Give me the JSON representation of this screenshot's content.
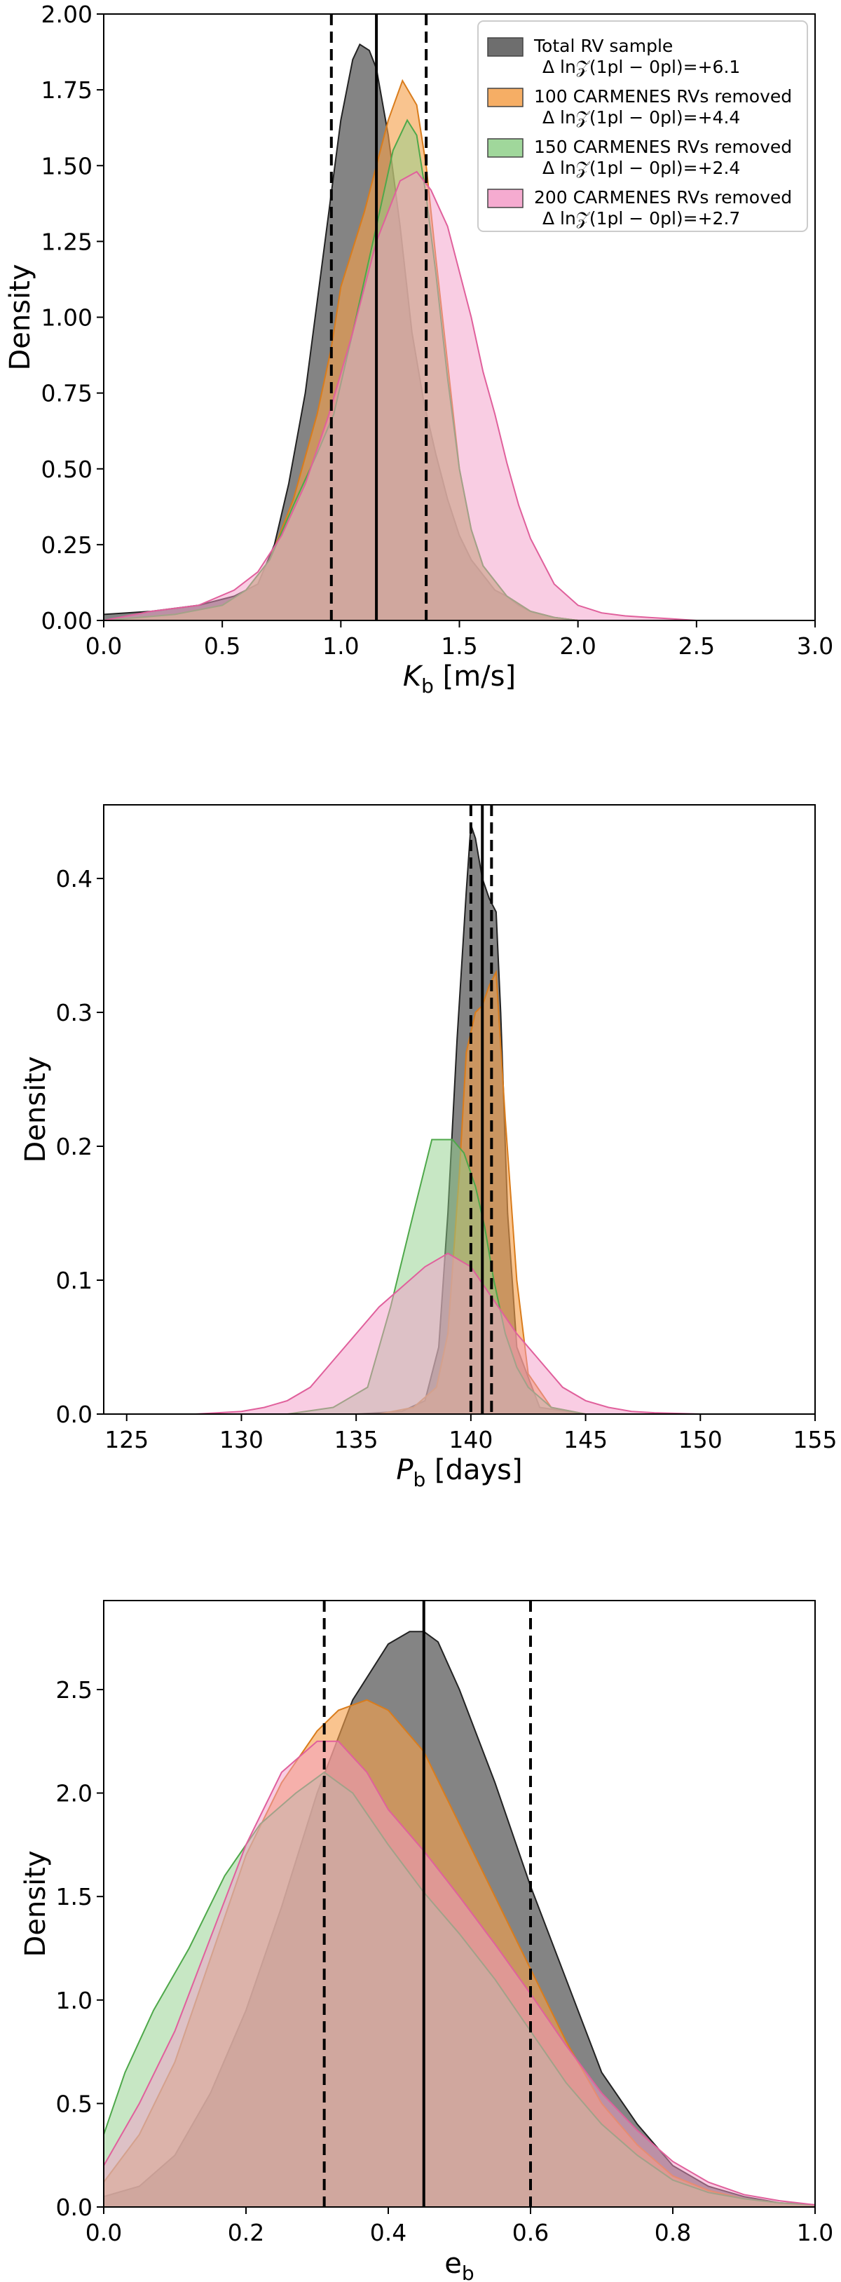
{
  "legend": {
    "entries": [
      {
        "label": "Total RV sample",
        "stat": "Δ ln𝒵(1pl − 0pl)=+6.1",
        "color": "#555555"
      },
      {
        "label": "100 CARMENES RVs removed",
        "stat": "Δ ln𝒵(1pl − 0pl)=+4.4",
        "color": "#f5a04a"
      },
      {
        "label": "150 CARMENES RVs removed",
        "stat": "Δ ln𝒵(1pl − 0pl)=+2.4",
        "color": "#8fd08a"
      },
      {
        "label": "200 CARMENES RVs removed",
        "stat": "Δ ln𝒵(1pl − 0pl)=+2.7",
        "color": "#f39cc8"
      }
    ],
    "placement": "top-right"
  },
  "chart_data": [
    {
      "type": "area",
      "xlabel": "K_b [m/s]",
      "ylabel": "Density",
      "xlim": [
        0.0,
        3.0
      ],
      "ylim": [
        0.0,
        2.0
      ],
      "xticks": [
        "0.0",
        "0.5",
        "1.0",
        "1.5",
        "2.0",
        "2.5",
        "3.0"
      ],
      "yticks": [
        "0.00",
        "0.25",
        "0.50",
        "0.75",
        "1.00",
        "1.25",
        "1.50",
        "1.75",
        "2.00"
      ],
      "median": 1.15,
      "interval": [
        0.96,
        1.36
      ],
      "series": [
        {
          "color": "#555555",
          "edge": "#222222",
          "x": [
            0,
            0.2,
            0.4,
            0.55,
            0.65,
            0.72,
            0.78,
            0.85,
            0.9,
            0.95,
            1.0,
            1.05,
            1.08,
            1.12,
            1.15,
            1.2,
            1.25,
            1.3,
            1.35,
            1.4,
            1.45,
            1.5,
            1.55,
            1.6,
            1.65,
            1.7,
            1.75,
            1.8,
            1.9,
            2.0
          ],
          "y": [
            0.02,
            0.03,
            0.05,
            0.08,
            0.12,
            0.25,
            0.45,
            0.75,
            1.05,
            1.35,
            1.65,
            1.85,
            1.9,
            1.88,
            1.82,
            1.6,
            1.3,
            0.95,
            0.72,
            0.55,
            0.4,
            0.28,
            0.2,
            0.15,
            0.1,
            0.08,
            0.05,
            0.03,
            0.01,
            0.0
          ]
        },
        {
          "color": "#f5a04a",
          "edge": "#d97c1c",
          "x": [
            0,
            0.3,
            0.5,
            0.6,
            0.7,
            0.8,
            0.9,
            0.96,
            1.0,
            1.1,
            1.2,
            1.26,
            1.32,
            1.36,
            1.4,
            1.45,
            1.5,
            1.55,
            1.6,
            1.7,
            1.8,
            1.9,
            2.0
          ],
          "y": [
            0.0,
            0.02,
            0.05,
            0.1,
            0.2,
            0.4,
            0.68,
            0.9,
            1.1,
            1.35,
            1.65,
            1.78,
            1.7,
            1.5,
            1.2,
            0.85,
            0.5,
            0.3,
            0.18,
            0.08,
            0.03,
            0.01,
            0.0
          ]
        },
        {
          "color": "#8fd08a",
          "edge": "#4ea84a",
          "x": [
            0,
            0.3,
            0.5,
            0.6,
            0.7,
            0.8,
            0.9,
            0.97,
            1.05,
            1.15,
            1.22,
            1.28,
            1.32,
            1.36,
            1.4,
            1.45,
            1.5,
            1.55,
            1.6,
            1.7,
            1.8,
            1.9,
            2.0
          ],
          "y": [
            0.0,
            0.02,
            0.05,
            0.1,
            0.2,
            0.38,
            0.55,
            0.68,
            0.95,
            1.3,
            1.55,
            1.65,
            1.6,
            1.4,
            1.15,
            0.8,
            0.5,
            0.3,
            0.18,
            0.08,
            0.03,
            0.01,
            0.0
          ]
        },
        {
          "color": "#f39cc8",
          "edge": "#e0609c",
          "x": [
            0,
            0.2,
            0.4,
            0.55,
            0.65,
            0.75,
            0.85,
            0.95,
            1.05,
            1.15,
            1.25,
            1.32,
            1.38,
            1.45,
            1.5,
            1.55,
            1.6,
            1.65,
            1.7,
            1.75,
            1.8,
            1.9,
            2.0,
            2.1,
            2.2,
            2.3,
            2.4,
            2.5
          ],
          "y": [
            0.0,
            0.03,
            0.05,
            0.1,
            0.16,
            0.28,
            0.45,
            0.68,
            0.95,
            1.25,
            1.45,
            1.48,
            1.42,
            1.3,
            1.15,
            1.0,
            0.82,
            0.68,
            0.52,
            0.38,
            0.27,
            0.12,
            0.05,
            0.025,
            0.015,
            0.01,
            0.005,
            0.0
          ]
        }
      ]
    },
    {
      "type": "area",
      "xlabel": "P_b [days]",
      "ylabel": "Density",
      "xlim": [
        124,
        155
      ],
      "ylim": [
        0.0,
        0.455
      ],
      "xticks": [
        "125",
        "130",
        "135",
        "140",
        "145",
        "150",
        "155"
      ],
      "yticks": [
        "0.0",
        "0.1",
        "0.2",
        "0.3",
        "0.4"
      ],
      "median": 140.5,
      "interval": [
        140.0,
        140.9
      ],
      "series": [
        {
          "color": "#555555",
          "edge": "#222222",
          "x": [
            124,
            135,
            137,
            138,
            138.6,
            139,
            139.4,
            139.8,
            140.0,
            140.2,
            140.5,
            140.8,
            141.1,
            141.3,
            141.6,
            142.0,
            143,
            145,
            150,
            155
          ],
          "y": [
            0.0,
            0.0,
            0.002,
            0.01,
            0.05,
            0.15,
            0.28,
            0.39,
            0.44,
            0.43,
            0.4,
            0.385,
            0.375,
            0.3,
            0.15,
            0.05,
            0.005,
            0.0,
            0.0,
            0.0
          ],
          "ymax": 0.445
        },
        {
          "color": "#f5a04a",
          "edge": "#d97c1c",
          "x": [
            124,
            136,
            137.5,
            138.5,
            139,
            139.5,
            139.8,
            140.2,
            140.5,
            140.8,
            141.1,
            141.5,
            142.0,
            142.5,
            143.5,
            145,
            155
          ],
          "y": [
            0.0,
            0.0,
            0.005,
            0.02,
            0.06,
            0.18,
            0.27,
            0.3,
            0.305,
            0.32,
            0.33,
            0.22,
            0.1,
            0.03,
            0.005,
            0.0,
            0.0
          ]
        },
        {
          "color": "#8fd08a",
          "edge": "#4ea84a",
          "x": [
            124,
            132,
            134,
            135.5,
            136.5,
            137.5,
            138.3,
            139.2,
            139.7,
            140.2,
            140.6,
            141.0,
            141.5,
            142.0,
            142.5,
            143.5,
            145,
            155
          ],
          "y": [
            0.0,
            0.0,
            0.005,
            0.02,
            0.08,
            0.15,
            0.205,
            0.205,
            0.195,
            0.17,
            0.14,
            0.1,
            0.06,
            0.035,
            0.02,
            0.005,
            0.0,
            0.0
          ]
        },
        {
          "color": "#f39cc8",
          "edge": "#e0609c",
          "x": [
            124,
            128,
            130,
            131,
            132,
            133,
            134,
            135,
            136,
            137,
            138,
            139,
            140,
            141,
            142,
            143,
            144,
            145,
            146,
            147,
            148,
            150,
            155
          ],
          "y": [
            0.0,
            0.0,
            0.002,
            0.005,
            0.01,
            0.02,
            0.04,
            0.06,
            0.08,
            0.095,
            0.11,
            0.12,
            0.11,
            0.085,
            0.06,
            0.04,
            0.02,
            0.01,
            0.005,
            0.002,
            0.001,
            0.0,
            0.0
          ]
        }
      ]
    },
    {
      "type": "area",
      "xlabel": "e_b",
      "ylabel": "Density",
      "xlim": [
        0.0,
        1.0
      ],
      "ylim": [
        0.0,
        2.93
      ],
      "xticks": [
        "0.0",
        "0.2",
        "0.4",
        "0.6",
        "0.8",
        "1.0"
      ],
      "yticks": [
        "0.0",
        "0.5",
        "1.0",
        "1.5",
        "2.0",
        "2.5"
      ],
      "median": 0.45,
      "interval": [
        0.31,
        0.6
      ],
      "series": [
        {
          "color": "#555555",
          "edge": "#222222",
          "x": [
            0.0,
            0.05,
            0.1,
            0.15,
            0.2,
            0.25,
            0.3,
            0.35,
            0.4,
            0.43,
            0.45,
            0.47,
            0.5,
            0.55,
            0.6,
            0.65,
            0.7,
            0.75,
            0.8,
            0.85,
            0.9,
            0.95,
            1.0
          ],
          "y": [
            0.05,
            0.1,
            0.25,
            0.55,
            0.95,
            1.45,
            2.0,
            2.45,
            2.72,
            2.78,
            2.78,
            2.73,
            2.5,
            2.05,
            1.55,
            1.1,
            0.65,
            0.4,
            0.2,
            0.1,
            0.05,
            0.02,
            0.01
          ]
        },
        {
          "color": "#f5a04a",
          "edge": "#d97c1c",
          "x": [
            0.0,
            0.05,
            0.1,
            0.15,
            0.2,
            0.25,
            0.3,
            0.33,
            0.37,
            0.4,
            0.45,
            0.5,
            0.55,
            0.6,
            0.65,
            0.7,
            0.75,
            0.8,
            0.85,
            0.9,
            0.95,
            1.0
          ],
          "y": [
            0.12,
            0.35,
            0.7,
            1.2,
            1.7,
            2.05,
            2.3,
            2.4,
            2.45,
            2.4,
            2.2,
            1.85,
            1.5,
            1.15,
            0.8,
            0.5,
            0.3,
            0.15,
            0.08,
            0.04,
            0.02,
            0.01
          ]
        },
        {
          "color": "#8fd08a",
          "edge": "#4ea84a",
          "x": [
            0.0,
            0.03,
            0.07,
            0.12,
            0.17,
            0.22,
            0.27,
            0.31,
            0.35,
            0.4,
            0.45,
            0.5,
            0.55,
            0.6,
            0.65,
            0.7,
            0.75,
            0.8,
            0.85,
            0.9,
            0.95,
            1.0
          ],
          "y": [
            0.35,
            0.65,
            0.95,
            1.25,
            1.6,
            1.85,
            2.0,
            2.1,
            2.0,
            1.75,
            1.52,
            1.32,
            1.1,
            0.85,
            0.6,
            0.4,
            0.25,
            0.13,
            0.07,
            0.04,
            0.02,
            0.01
          ]
        },
        {
          "color": "#f39cc8",
          "edge": "#e0609c",
          "x": [
            0.0,
            0.05,
            0.1,
            0.15,
            0.2,
            0.25,
            0.3,
            0.33,
            0.37,
            0.4,
            0.45,
            0.5,
            0.55,
            0.6,
            0.65,
            0.7,
            0.75,
            0.8,
            0.85,
            0.9,
            0.95,
            1.0
          ],
          "y": [
            0.2,
            0.5,
            0.85,
            1.3,
            1.75,
            2.1,
            2.25,
            2.25,
            2.1,
            1.92,
            1.72,
            1.5,
            1.27,
            1.03,
            0.78,
            0.55,
            0.37,
            0.22,
            0.12,
            0.06,
            0.03,
            0.01
          ]
        }
      ]
    }
  ]
}
